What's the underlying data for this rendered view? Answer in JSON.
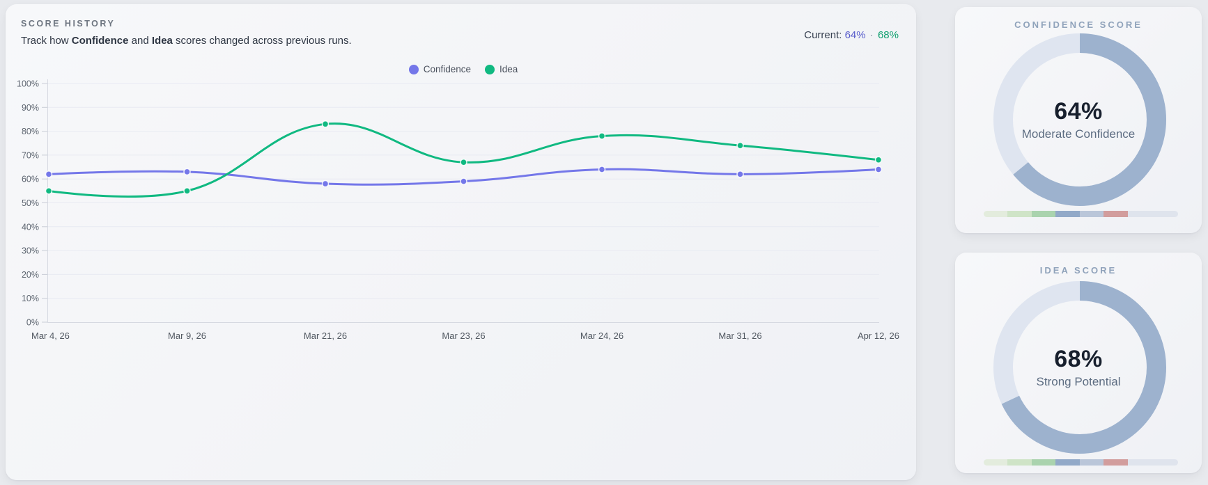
{
  "history": {
    "title": "SCORE HISTORY",
    "subtitle_parts": [
      "Track how ",
      "Confidence",
      " and ",
      "Idea",
      " scores changed across previous runs."
    ],
    "current_label": "Current:",
    "current_confidence": "64%",
    "current_separator": "·",
    "current_idea": "68%"
  },
  "chart_data": [
    {
      "type": "line",
      "title": "Score History",
      "categories": [
        "Mar 4, 26",
        "Mar 9, 26",
        "Mar 21, 26",
        "Mar 23, 26",
        "Mar 24, 26",
        "Mar 31, 26",
        "Apr 12, 26"
      ],
      "series": [
        {
          "name": "Confidence",
          "color": "#7477e9",
          "values": [
            62,
            63,
            58,
            59,
            64,
            62,
            64
          ]
        },
        {
          "name": "Idea",
          "color": "#10b981",
          "values": [
            55,
            55,
            83,
            67,
            78,
            74,
            68
          ]
        }
      ],
      "ylim": [
        0,
        100
      ],
      "ytick_step": 10,
      "ytick_suffix": "%",
      "grid": true,
      "legend_position": "top-center",
      "grid_color": "#e8eaf2",
      "axis_color": "#d6d9e1",
      "tick_color": "#c9cdd6",
      "label_color": "#5d6570",
      "xlabel_color": "#515861"
    },
    {
      "type": "donut",
      "title": "CONFIDENCE SCORE",
      "value": 64,
      "value_label": "64%",
      "caption": "Moderate Confidence",
      "fill_color": "#9db2ce",
      "track_color": "#dfe5f0"
    },
    {
      "type": "donut",
      "title": "IDEA SCORE",
      "value": 68,
      "value_label": "68%",
      "caption": "Strong Potential",
      "fill_color": "#9db2ce",
      "track_color": "#dfe5f0"
    }
  ],
  "scale_bar": {
    "segments": [
      {
        "color": "#e3ecdd",
        "span": 1
      },
      {
        "color": "#cfe4c7",
        "span": 1
      },
      {
        "color": "#aad3ae",
        "span": 1
      },
      {
        "color": "#92a9c8",
        "span": 1
      },
      {
        "color": "#bac6d9",
        "span": 1
      },
      {
        "color": "#d29d9d",
        "span": 1
      },
      {
        "color": "#dfe4ed",
        "span": 2.1
      }
    ]
  }
}
